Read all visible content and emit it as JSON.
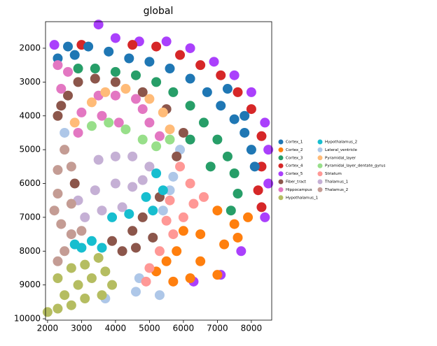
{
  "chart_data": {
    "type": "scatter",
    "title": "global",
    "xlim": [
      1940,
      8600
    ],
    "ylim": [
      1215,
      10040
    ],
    "y_inverted": true,
    "xticks": [
      2000,
      3000,
      4000,
      5000,
      6000,
      7000,
      8000
    ],
    "yticks": [
      2000,
      3000,
      4000,
      5000,
      6000,
      7000,
      8000,
      9000,
      10000
    ],
    "legend": "right",
    "series": [
      {
        "name": "Cortex_5",
        "color": "#aa40fc",
        "x": [
          3500,
          4000,
          4700,
          5500,
          6200,
          6900,
          7500,
          8000,
          8400,
          8500,
          8500,
          8400,
          7700,
          7100,
          6300,
          2200
        ],
        "y": [
          1300,
          1700,
          1800,
          1800,
          2000,
          2400,
          2800,
          3300,
          4200,
          5000,
          6000,
          7000,
          8000,
          8700,
          8900,
          1900
        ]
      },
      {
        "name": "Cortex_4",
        "color": "#d62728",
        "x": [
          3000,
          4500,
          5200,
          5900,
          6500,
          7100,
          7600,
          8000,
          8300,
          8300,
          8200,
          8300
        ],
        "y": [
          1900,
          1900,
          1950,
          2200,
          2500,
          2800,
          3300,
          3800,
          4600,
          5500,
          6200,
          6700
        ]
      },
      {
        "name": "Cortex_1",
        "color": "#1f77b4",
        "x": [
          2600,
          3200,
          3800,
          4400,
          5000,
          5600,
          6200,
          6700,
          7100,
          7500,
          7800,
          8000,
          8100,
          2300,
          2800,
          7300,
          7800
        ],
        "y": [
          1950,
          1950,
          2100,
          2300,
          2400,
          2600,
          2900,
          3300,
          3700,
          4100,
          4500,
          5000,
          5500,
          2300,
          2200,
          3200,
          4000
        ]
      },
      {
        "name": "Cortex_3",
        "color": "#279e68",
        "x": [
          2900,
          3400,
          4000,
          4600,
          5200,
          5700,
          6200,
          6600,
          7000,
          7300,
          7500,
          7600,
          7400,
          6200,
          6800
        ],
        "y": [
          2600,
          2600,
          2700,
          2800,
          3000,
          3300,
          3700,
          4200,
          4700,
          5200,
          5700,
          6300,
          6800,
          4700,
          5500
        ]
      },
      {
        "name": "Cortex_2",
        "color": "#ff7f0e",
        "x": [
          7000,
          7500,
          7900,
          6500,
          7200,
          5800,
          6500,
          7000,
          5200,
          5700,
          6200,
          7600,
          5500,
          6000
        ],
        "y": [
          6800,
          7200,
          7000,
          7500,
          7800,
          8000,
          8300,
          8700,
          8600,
          8900,
          8800,
          7600,
          8300,
          7400
        ]
      },
      {
        "name": "Lateral_ventricle",
        "color": "#aec7e8",
        "x": [
          5700,
          5400,
          4700,
          4600,
          5300,
          2500,
          5900,
          5600,
          3700
        ],
        "y": [
          5800,
          6800,
          8800,
          9200,
          9300,
          4500,
          5000,
          6200,
          9400
        ]
      },
      {
        "name": "Striatum",
        "color": "#ff9896",
        "x": [
          5900,
          6200,
          6300,
          6000,
          5700,
          5300,
          5000,
          4900,
          5600,
          5500,
          6600
        ],
        "y": [
          5500,
          6000,
          6600,
          7000,
          7500,
          8000,
          8500,
          8900,
          6500,
          7100,
          6400
        ]
      },
      {
        "name": "Fiber_tract",
        "color": "#8c564b",
        "x": [
          2400,
          2600,
          2900,
          3400,
          4000,
          4800,
          5500,
          6000,
          2800,
          5800,
          5300,
          4800,
          4500,
          4200,
          4600,
          5100,
          3900,
          2300
        ],
        "y": [
          3700,
          3400,
          3000,
          2900,
          3000,
          3300,
          3800,
          4500,
          6000,
          5200,
          6400,
          7000,
          7400,
          8000,
          7900,
          7600,
          7700,
          4000
        ]
      },
      {
        "name": "Hippocampus",
        "color": "#e377c2",
        "x": [
          2300,
          2400,
          2600,
          3000,
          3500,
          4000,
          4600,
          5000,
          5300,
          4100,
          3600,
          2900,
          4800
        ],
        "y": [
          2500,
          3200,
          2700,
          3900,
          3400,
          3400,
          3500,
          4200,
          4600,
          4200,
          4000,
          4500,
          3800
        ]
      },
      {
        "name": "Pyramidal_layer",
        "color": "#ffbb78",
        "x": [
          3300,
          3700,
          4300,
          5000,
          5400,
          5600,
          2800
        ],
        "y": [
          3600,
          3300,
          3200,
          3500,
          3900,
          4400,
          4200
        ]
      },
      {
        "name": "Pyramidal_layer_dentate_gyrus",
        "color": "#98df8a",
        "x": [
          3300,
          3800,
          4300,
          4800,
          5200,
          5600
        ],
        "y": [
          4300,
          4200,
          4400,
          4700,
          4900,
          4700
        ]
      },
      {
        "name": "Thalamus_1",
        "color": "#c5b0d5",
        "x": [
          3500,
          4000,
          4500,
          5000,
          3400,
          4000,
          4500,
          3600,
          4200,
          3100,
          4800,
          2900
        ],
        "y": [
          5300,
          5200,
          5200,
          5500,
          6200,
          6000,
          6100,
          6800,
          6700,
          7000,
          5900,
          6500
        ]
      },
      {
        "name": "Thalamus_2",
        "color": "#c49c94",
        "x": [
          2500,
          2300,
          2700,
          2300,
          2700,
          2400,
          2700,
          2500,
          2300,
          3000,
          2200
        ],
        "y": [
          5000,
          5600,
          5500,
          6300,
          6600,
          7200,
          7500,
          8000,
          8300,
          7400,
          6800
        ]
      },
      {
        "name": "Hypothalamus_2",
        "color": "#17becf",
        "x": [
          5200,
          5400,
          4900,
          5100,
          4400,
          3900,
          3300,
          3600,
          3000,
          2800
        ],
        "y": [
          5700,
          6200,
          6400,
          6800,
          6900,
          7000,
          7700,
          7900,
          7900,
          7800
        ]
      },
      {
        "name": "Hypothalamus_1",
        "color": "#b5bd61",
        "x": [
          2300,
          2700,
          3100,
          3500,
          2500,
          2900,
          3300,
          3700,
          2700,
          3100,
          3600,
          2000,
          2300,
          3900
        ],
        "y": [
          8800,
          8500,
          8400,
          8200,
          9300,
          9000,
          8800,
          8600,
          9600,
          9400,
          9300,
          9800,
          9700,
          9000
        ]
      }
    ],
    "legend_order": [
      2,
      4,
      3,
      1,
      0,
      7,
      8,
      14,
      13,
      5,
      9,
      10,
      6,
      11,
      12
    ]
  }
}
